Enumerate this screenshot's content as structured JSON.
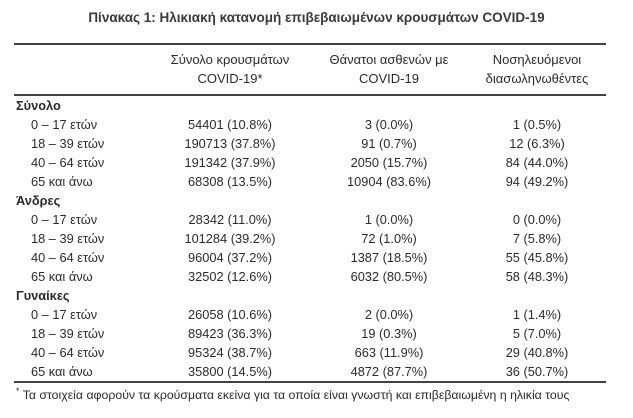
{
  "title": "Πίνακας 1: Ηλικιακή κατανομή επιβεβαιωμένων κρουσμάτων COVID-19",
  "table": {
    "headers": {
      "cases": {
        "line1": "Σύνολο κρουσμάτων",
        "line2": "COVID-19*"
      },
      "deaths": {
        "line1": "Θάνατοι ασθενών με",
        "line2": "COVID-19"
      },
      "intubated": {
        "line1": "Νοσηλευόμενοι",
        "line2": "διασωληνωθέντες"
      }
    },
    "sections": [
      {
        "label": "Σύνολο",
        "rows": [
          {
            "label": "0 – 17 ετών",
            "cases": "54401 (10.8%)",
            "deaths": "3 (0.0%)",
            "intubated": "1 (0.5%)"
          },
          {
            "label": "18 – 39 ετών",
            "cases": "190713 (37.8%)",
            "deaths": "91 (0.7%)",
            "intubated": "12 (6.3%)"
          },
          {
            "label": "40 – 64 ετών",
            "cases": "191342 (37.9%)",
            "deaths": "2050 (15.7%)",
            "intubated": "84 (44.0%)"
          },
          {
            "label": "65 και άνω",
            "cases": "68308 (13.5%)",
            "deaths": "10904 (83.6%)",
            "intubated": "94 (49.2%)"
          }
        ]
      },
      {
        "label": "Άνδρες",
        "rows": [
          {
            "label": "0 – 17 ετών",
            "cases": "28342 (11.0%)",
            "deaths": "1 (0.0%)",
            "intubated": "0 (0.0%)"
          },
          {
            "label": "18 – 39 ετών",
            "cases": "101284 (39.2%)",
            "deaths": "72 (1.0%)",
            "intubated": "7 (5.8%)"
          },
          {
            "label": "40 – 64 ετών",
            "cases": "96004 (37.2%)",
            "deaths": "1387 (18.5%)",
            "intubated": "55 (45.8%)"
          },
          {
            "label": "65 και άνω",
            "cases": "32502 (12.6%)",
            "deaths": "6032 (80.5%)",
            "intubated": "58 (48.3%)"
          }
        ]
      },
      {
        "label": "Γυναίκες",
        "rows": [
          {
            "label": "0 – 17 ετών",
            "cases": "26058 (10.6%)",
            "deaths": "2 (0.0%)",
            "intubated": "1 (1.4%)"
          },
          {
            "label": "18 – 39 ετών",
            "cases": "89423 (36.3%)",
            "deaths": "19 (0.3%)",
            "intubated": "5 (7.0%)"
          },
          {
            "label": "40 – 64 ετών",
            "cases": "95324 (38.7%)",
            "deaths": "663 (11.9%)",
            "intubated": "29 (40.8%)"
          },
          {
            "label": "65 και άνω",
            "cases": "35800 (14.5%)",
            "deaths": "4872 (87.7%)",
            "intubated": "36 (50.7%)"
          }
        ]
      }
    ]
  },
  "footnote": {
    "marker": "*",
    "text": "Τα στοιχεία αφορούν τα κρούσματα εκείνα για τα οποία είναι γνωστή και επιβεβαιωμένη η ηλικία τους"
  }
}
